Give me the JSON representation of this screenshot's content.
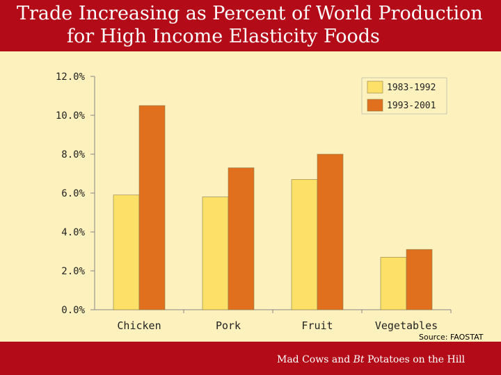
{
  "header": {
    "title_line1": "Trade Increasing as Percent of World Production",
    "title_line2": "for High Income Elasticity Foods"
  },
  "source_note": "Source: FAOSTAT",
  "footer": {
    "pre": "Mad Cows and ",
    "italic": "Bt",
    "post": " Potatoes on the Hill"
  },
  "colors": {
    "brand_red": "#b30c18",
    "background": "#fdf1bd",
    "series_1983_1992": "#fde068",
    "series_1993_2001": "#e0701e"
  },
  "chart_data": {
    "type": "bar",
    "title": "Trade Increasing as Percent of World Production for High Income Elasticity Foods",
    "categories": [
      "Chicken",
      "Pork",
      "Fruit",
      "Vegetables"
    ],
    "series": [
      {
        "name": "1983-1992",
        "values": [
          5.9,
          5.8,
          6.7,
          2.7
        ]
      },
      {
        "name": "1993-2001",
        "values": [
          10.5,
          7.3,
          8.0,
          3.1
        ]
      }
    ],
    "y_ticks": [
      "0.0%",
      "2.0%",
      "4.0%",
      "6.0%",
      "8.0%",
      "10.0%",
      "12.0%"
    ],
    "ylim": [
      0,
      12
    ],
    "xlabel": "",
    "ylabel": "",
    "grid": false,
    "legend_position": "top-right"
  }
}
